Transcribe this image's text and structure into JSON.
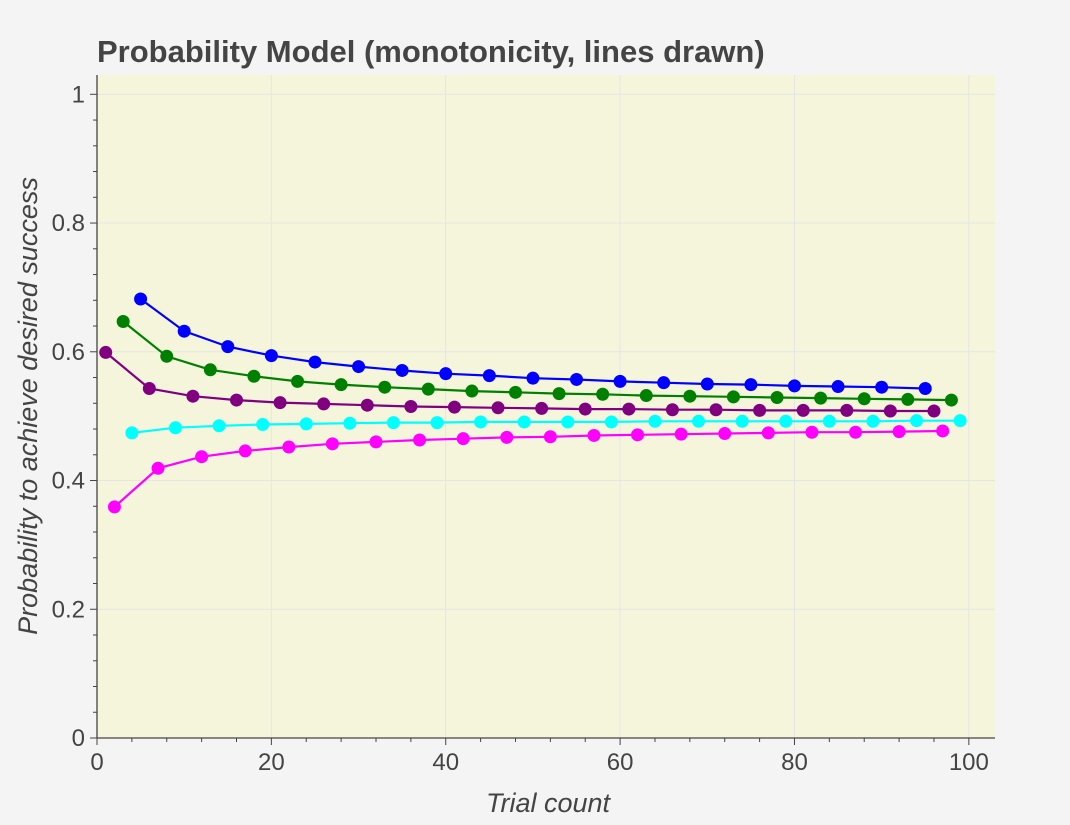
{
  "chart_data": {
    "type": "line",
    "title": "Probability Model (monotonicity, lines drawn)",
    "xlabel": "Trial count",
    "ylabel": "Probability to achieve desired success",
    "xlim": [
      0,
      103
    ],
    "ylim": [
      0,
      1.03
    ],
    "x_ticks": [
      0,
      20,
      40,
      60,
      80,
      100
    ],
    "y_ticks": [
      0,
      0.2,
      0.4,
      0.6,
      0.8,
      1
    ],
    "y_tick_labels": [
      "0",
      "0.2",
      "0.4",
      "0.6",
      "0.8",
      "1"
    ],
    "x_tick_labels": [
      "0",
      "20",
      "40",
      "60",
      "80",
      "100"
    ],
    "grid": true,
    "colors": {
      "background": "#f4f4f4",
      "plot_background": "#f5f5dc",
      "grid": "#e5e5e5",
      "axis": "#444444",
      "text": "#444444"
    },
    "series": [
      {
        "color": "#0000ff",
        "x": [
          5,
          10,
          15,
          20,
          25,
          30,
          35,
          40,
          45,
          50,
          55,
          60,
          65,
          70,
          75,
          80,
          85,
          90,
          95
        ],
        "y": [
          0.682,
          0.632,
          0.608,
          0.594,
          0.584,
          0.577,
          0.571,
          0.566,
          0.563,
          0.559,
          0.557,
          0.554,
          0.552,
          0.55,
          0.549,
          0.547,
          0.546,
          0.545,
          0.543
        ]
      },
      {
        "color": "#008000",
        "x": [
          3,
          8,
          13,
          18,
          23,
          28,
          33,
          38,
          43,
          48,
          53,
          58,
          63,
          68,
          73,
          78,
          83,
          88,
          93,
          98
        ],
        "y": [
          0.647,
          0.593,
          0.572,
          0.562,
          0.554,
          0.549,
          0.545,
          0.542,
          0.539,
          0.537,
          0.535,
          0.534,
          0.532,
          0.531,
          0.53,
          0.529,
          0.528,
          0.527,
          0.526,
          0.525
        ]
      },
      {
        "color": "#800080",
        "x": [
          1,
          6,
          11,
          16,
          21,
          26,
          31,
          36,
          41,
          46,
          51,
          56,
          61,
          66,
          71,
          76,
          81,
          86,
          91,
          96
        ],
        "y": [
          0.599,
          0.543,
          0.531,
          0.525,
          0.521,
          0.519,
          0.517,
          0.515,
          0.514,
          0.513,
          0.512,
          0.511,
          0.511,
          0.51,
          0.51,
          0.509,
          0.509,
          0.509,
          0.508,
          0.508
        ]
      },
      {
        "color": "#00ffff",
        "x": [
          4,
          9,
          14,
          19,
          24,
          29,
          34,
          39,
          44,
          49,
          54,
          59,
          64,
          69,
          74,
          79,
          84,
          89,
          94,
          99
        ],
        "y": [
          0.474,
          0.482,
          0.485,
          0.487,
          0.488,
          0.489,
          0.49,
          0.49,
          0.491,
          0.491,
          0.491,
          0.491,
          0.492,
          0.492,
          0.492,
          0.492,
          0.492,
          0.492,
          0.493,
          0.493
        ]
      },
      {
        "color": "#ff00ff",
        "x": [
          2,
          7,
          12,
          17,
          22,
          27,
          32,
          37,
          42,
          47,
          52,
          57,
          62,
          67,
          72,
          77,
          82,
          87,
          92,
          97
        ],
        "y": [
          0.359,
          0.419,
          0.437,
          0.446,
          0.452,
          0.457,
          0.46,
          0.463,
          0.465,
          0.467,
          0.468,
          0.47,
          0.471,
          0.472,
          0.473,
          0.474,
          0.475,
          0.475,
          0.476,
          0.477
        ]
      }
    ]
  }
}
